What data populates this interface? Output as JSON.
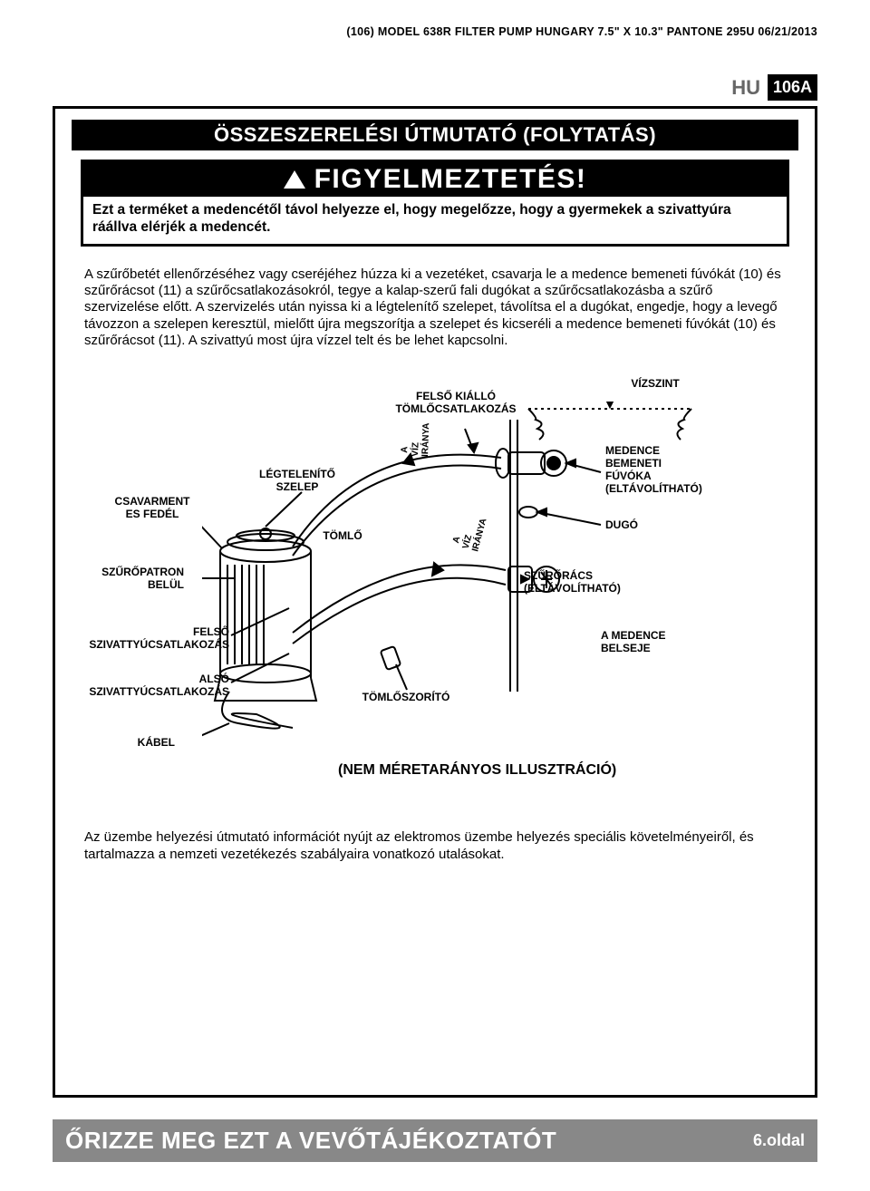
{
  "doc_header": "(106) MODEL 638R FILTER PUMP HUNGARY 7.5\" X 10.3\" PANTONE 295U 06/21/2013",
  "lang": "HU",
  "page_badge": "106A",
  "section_title": "ÖSSZESZERELÉSI ÚTMUTATÓ (FOLYTATÁS)",
  "warning": {
    "label": "FIGYELMEZTETÉS!",
    "body": "Ezt a terméket a medencétől távol helyezze el, hogy megelőzze, hogy a gyermekek a szivattyúra ráállva elérjék a medencét."
  },
  "main_para": "A szűrőbetét ellenőrzéséhez vagy cseréjéhez húzza ki a vezetéket, csavarja le a medence bemeneti fúvókát (10) és szűrőrácsot (11) a szűrőcsatlakozásokról, tegye a kalap-szerű fali dugókat a szűrőcsatlakozásba a szűrő szervizelése előtt. A szervizelés után nyissa ki a légtelenítő szelepet, távolítsa el a dugókat, engedje, hogy a levegő távozzon a szelepen keresztül, mielőtt újra megszorítja a szelepet és kicseréli a medence bemeneti fúvókát (10) és szűrőrácsot (11). A szivattyú most újra vízzel telt és be lehet kapcsolni.",
  "diagram_labels": {
    "top_fitting": "FELSŐ KIÁLLÓ\nTÖMLŐCSATLAKOZÁS",
    "water_level": "VÍZSZINT",
    "air_valve": "LÉGTELENÍTŐ\nSZELEP",
    "screw_lid": "CSAVARMENT\nES FEDÉL",
    "hose": "TÖMLŐ",
    "flow": "A VÍZ IRÁNYA",
    "flow2": "A VÍZ IRÁNYA",
    "inlet": "MEDENCE\nBEMENETI\nFÚVÓKA\n(ELTÁVOLÍTHATÓ)",
    "plug": "DUGÓ",
    "cartridge": "SZŰRŐPATRON\nBELÜL",
    "strainer": "SZŰRŐRÁCS\n(ELTÁVOLÍTHATÓ)",
    "upper_pump": "FELSŐ\nSZIVATTYÚCSATLAKOZÁS",
    "pool_inside": "A MEDENCE\nBELSEJE",
    "lower_pump": "ALSÓ\nSZIVATTYÚCSATLAKOZÁS",
    "clamp": "TÖMLŐSZORÍTÓ",
    "cable": "KÁBEL",
    "note": "(NEM MÉRETARÁNYOS ILLUSZTRÁCIÓ)"
  },
  "footer_para": "Az üzembe helyezési útmutató információt nyújt az elektromos üzembe helyezés speciális követelményeiről, és tartalmazza a nemzeti vezetékezés szabályaira vonatkozó utalásokat.",
  "footer_main": "ŐRIZZE MEG EZT A VEVŐTÁJÉKOZTATÓT",
  "footer_page": "6.oldal",
  "colors": {
    "gray_bg": "#888888",
    "black": "#000000",
    "white": "#ffffff",
    "lang_gray": "#666666"
  }
}
